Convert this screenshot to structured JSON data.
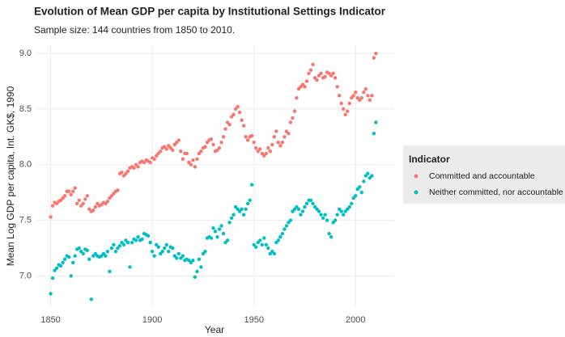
{
  "chart_data": {
    "type": "scatter",
    "title": "Evolution of Mean GDP per capita by Institutional Settings Indicator",
    "subtitle": "Sample size: 144 countries from 1850 to 2010.",
    "x_label": "Year",
    "y_label": "Mean Log GDP per capita, Int. GK$, 1990",
    "legend_title": "Indicator",
    "legend": "right",
    "grid": true,
    "xlim": [
      1843,
      2019
    ],
    "ylim": [
      6.72,
      9.08
    ],
    "xticks": [
      1850,
      1900,
      1950,
      2000
    ],
    "yticks": [
      {
        "value": 7,
        "label": "7.0"
      },
      {
        "value": 7.5,
        "label": "7.5"
      },
      {
        "value": 8,
        "label": "8.0"
      },
      {
        "value": 8.5,
        "label": "8.5"
      },
      {
        "value": 9,
        "label": "9.0"
      }
    ],
    "x": [
      1850,
      1851,
      1852,
      1853,
      1854,
      1855,
      1856,
      1857,
      1858,
      1859,
      1860,
      1861,
      1862,
      1863,
      1864,
      1865,
      1866,
      1867,
      1868,
      1869,
      1870,
      1871,
      1872,
      1873,
      1874,
      1875,
      1876,
      1877,
      1878,
      1879,
      1880,
      1881,
      1882,
      1883,
      1884,
      1885,
      1886,
      1887,
      1888,
      1889,
      1890,
      1891,
      1892,
      1893,
      1894,
      1895,
      1896,
      1897,
      1898,
      1899,
      1900,
      1901,
      1902,
      1903,
      1904,
      1905,
      1906,
      1907,
      1908,
      1909,
      1910,
      1911,
      1912,
      1913,
      1914,
      1915,
      1916,
      1917,
      1918,
      1919,
      1920,
      1921,
      1922,
      1923,
      1924,
      1925,
      1926,
      1927,
      1928,
      1929,
      1930,
      1931,
      1932,
      1933,
      1934,
      1935,
      1936,
      1937,
      1938,
      1939,
      1940,
      1941,
      1942,
      1943,
      1944,
      1945,
      1946,
      1947,
      1948,
      1949,
      1950,
      1951,
      1952,
      1953,
      1954,
      1955,
      1956,
      1957,
      1958,
      1959,
      1960,
      1961,
      1962,
      1963,
      1964,
      1965,
      1966,
      1967,
      1968,
      1969,
      1970,
      1971,
      1972,
      1973,
      1974,
      1975,
      1976,
      1977,
      1978,
      1979,
      1980,
      1981,
      1982,
      1983,
      1984,
      1985,
      1986,
      1987,
      1988,
      1989,
      1990,
      1991,
      1992,
      1993,
      1994,
      1995,
      1996,
      1997,
      1998,
      1999,
      2000,
      2001,
      2002,
      2003,
      2004,
      2005,
      2006,
      2007,
      2008,
      2009,
      2010
    ],
    "series": [
      {
        "name": "Committed and accountable",
        "color": "#F8766D",
        "values": [
          7.53,
          7.63,
          7.66,
          7.65,
          7.67,
          7.68,
          7.7,
          7.72,
          7.76,
          7.76,
          7.73,
          7.76,
          7.79,
          7.65,
          7.68,
          7.63,
          7.65,
          7.69,
          7.72,
          7.6,
          7.58,
          7.59,
          7.62,
          7.65,
          7.63,
          7.64,
          7.66,
          7.65,
          7.67,
          7.7,
          7.72,
          7.74,
          7.76,
          7.77,
          7.92,
          7.93,
          7.9,
          7.92,
          7.94,
          7.97,
          7.98,
          7.97,
          8.0,
          7.98,
          8.02,
          8.03,
          8.02,
          8.04,
          8.03,
          8.02,
          8.06,
          8.05,
          8.08,
          8.1,
          8.12,
          8.15,
          8.16,
          8.14,
          8.17,
          8.15,
          8.13,
          8.18,
          8.2,
          8.22,
          8.12,
          8.05,
          8.1,
          8.1,
          8.02,
          8.0,
          8.04,
          7.98,
          8.05,
          8.1,
          8.12,
          8.15,
          8.16,
          8.2,
          8.22,
          8.23,
          8.18,
          8.12,
          8.13,
          8.15,
          8.2,
          8.25,
          8.32,
          8.38,
          8.36,
          8.43,
          8.45,
          8.5,
          8.52,
          8.47,
          8.4,
          8.35,
          8.25,
          8.22,
          8.25,
          8.26,
          8.2,
          8.15,
          8.12,
          8.14,
          8.1,
          8.08,
          8.1,
          8.15,
          8.12,
          8.18,
          8.25,
          8.3,
          8.2,
          8.17,
          8.2,
          8.25,
          8.3,
          8.28,
          8.38,
          8.42,
          8.48,
          8.6,
          8.68,
          8.7,
          8.72,
          8.7,
          8.75,
          8.82,
          8.85,
          8.9,
          8.78,
          8.76,
          8.8,
          8.82,
          8.78,
          8.79,
          8.83,
          8.82,
          8.8,
          8.82,
          8.78,
          8.7,
          8.62,
          8.55,
          8.5,
          8.45,
          8.48,
          8.55,
          8.6,
          8.62,
          8.65,
          8.6,
          8.58,
          8.6,
          8.65,
          8.68,
          8.62,
          8.58,
          8.62,
          8.96,
          9.0
        ]
      },
      {
        "name": "Neither committed, nor accountable",
        "color": "#00BFC4",
        "values": [
          6.84,
          6.98,
          7.05,
          7.07,
          7.1,
          7.09,
          7.12,
          7.15,
          7.18,
          7.17,
          7.0,
          7.12,
          7.18,
          7.24,
          7.25,
          7.22,
          7.2,
          7.24,
          7.23,
          7.15,
          6.79,
          7.18,
          7.2,
          7.18,
          7.17,
          7.18,
          7.2,
          7.18,
          7.22,
          7.04,
          7.25,
          7.28,
          7.22,
          7.25,
          7.27,
          7.3,
          7.28,
          7.32,
          7.3,
          7.08,
          7.3,
          7.33,
          7.32,
          7.35,
          7.32,
          7.33,
          7.38,
          7.37,
          7.36,
          7.3,
          7.22,
          7.18,
          7.28,
          7.26,
          7.2,
          7.22,
          7.25,
          7.28,
          7.22,
          7.26,
          7.25,
          7.18,
          7.16,
          7.2,
          7.16,
          7.18,
          7.14,
          7.15,
          7.14,
          7.12,
          7.14,
          6.99,
          7.04,
          7.15,
          7.08,
          7.2,
          7.22,
          7.34,
          7.35,
          7.34,
          7.43,
          7.4,
          7.35,
          7.42,
          7.45,
          7.38,
          7.3,
          7.32,
          7.48,
          7.52,
          7.55,
          7.62,
          7.6,
          7.58,
          7.6,
          7.55,
          7.6,
          7.65,
          7.68,
          7.82,
          7.28,
          7.26,
          7.3,
          7.32,
          7.28,
          7.34,
          7.28,
          7.25,
          7.2,
          7.22,
          7.2,
          7.3,
          7.32,
          7.35,
          7.38,
          7.42,
          7.45,
          7.48,
          7.5,
          7.58,
          7.6,
          7.62,
          7.6,
          7.55,
          7.58,
          7.62,
          7.65,
          7.68,
          7.68,
          7.65,
          7.62,
          7.6,
          7.58,
          7.55,
          7.52,
          7.55,
          7.5,
          7.38,
          7.35,
          7.48,
          7.5,
          7.55,
          7.6,
          7.58,
          7.55,
          7.58,
          7.6,
          7.62,
          7.65,
          7.7,
          7.72,
          7.78,
          7.8,
          7.75,
          7.85,
          7.9,
          7.92,
          7.88,
          7.9,
          8.28,
          8.38
        ]
      }
    ]
  }
}
